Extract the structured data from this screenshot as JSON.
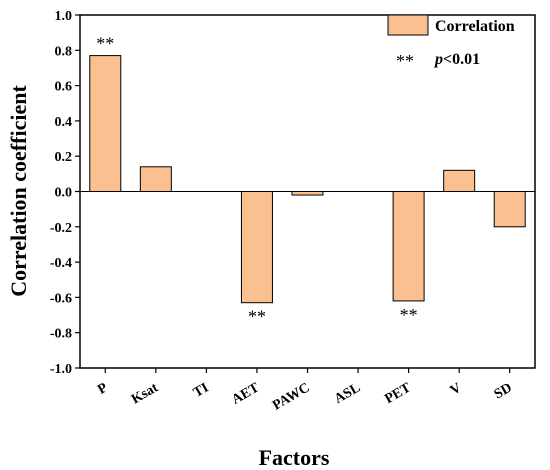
{
  "chart_data": {
    "type": "bar",
    "categories": [
      "P",
      "Ksat",
      "TI",
      "AET",
      "PAWC",
      "ASL",
      "PET",
      "V",
      "SD"
    ],
    "values": [
      0.77,
      0.14,
      0.0,
      -0.63,
      -0.02,
      0.0,
      -0.62,
      0.12,
      -0.2
    ],
    "significance": [
      "**",
      "",
      "",
      "**",
      "",
      "",
      "**",
      "",
      ""
    ],
    "xlabel": "Factors",
    "ylabel": "Correlation coefficient",
    "ylim": [
      -1.0,
      1.0
    ],
    "yticks": [
      "-1.0",
      "-0.8",
      "-0.6",
      "-0.4",
      "-0.2",
      "0.0",
      "0.2",
      "0.4",
      "0.6",
      "0.8",
      "1.0"
    ],
    "grid": false,
    "legend": {
      "position": "top-right",
      "series_label": "Correlation",
      "significance_symbol": "**",
      "significance_p": "p",
      "significance_threshold": "<0.01"
    },
    "colors": {
      "bar_fill": "#FAC090",
      "bar_stroke": "#000000"
    }
  }
}
